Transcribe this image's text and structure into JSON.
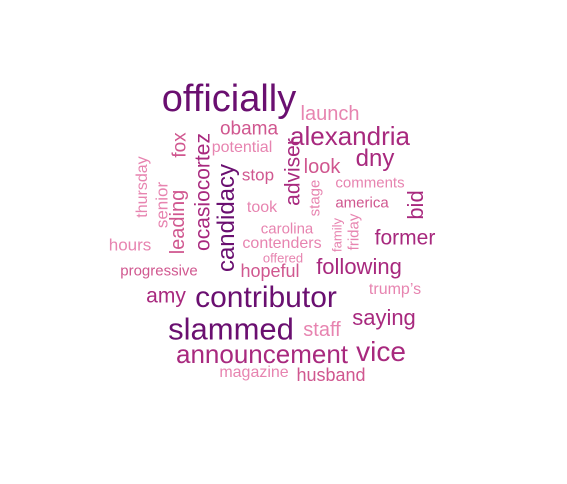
{
  "words": [
    {
      "text": "officially"
    },
    {
      "text": "launch"
    },
    {
      "text": "obama"
    },
    {
      "text": "alexandria"
    },
    {
      "text": "potential"
    },
    {
      "text": "fox"
    },
    {
      "text": "ocasiocortez"
    },
    {
      "text": "adviser"
    },
    {
      "text": "look"
    },
    {
      "text": "dny"
    },
    {
      "text": "thursday"
    },
    {
      "text": "senior"
    },
    {
      "text": "leading"
    },
    {
      "text": "candidacy"
    },
    {
      "text": "stop"
    },
    {
      "text": "stage"
    },
    {
      "text": "comments"
    },
    {
      "text": "america"
    },
    {
      "text": "bid"
    },
    {
      "text": "took"
    },
    {
      "text": "carolina"
    },
    {
      "text": "family"
    },
    {
      "text": "friday"
    },
    {
      "text": "former"
    },
    {
      "text": "hours"
    },
    {
      "text": "contenders"
    },
    {
      "text": "offered"
    },
    {
      "text": "progressive"
    },
    {
      "text": "hopeful"
    },
    {
      "text": "following"
    },
    {
      "text": "trump’s"
    },
    {
      "text": "amy"
    },
    {
      "text": "contributor"
    },
    {
      "text": "saying"
    },
    {
      "text": "slammed"
    },
    {
      "text": "staff"
    },
    {
      "text": "announcement"
    },
    {
      "text": "vice"
    },
    {
      "text": "magazine"
    },
    {
      "text": "husband"
    }
  ]
}
